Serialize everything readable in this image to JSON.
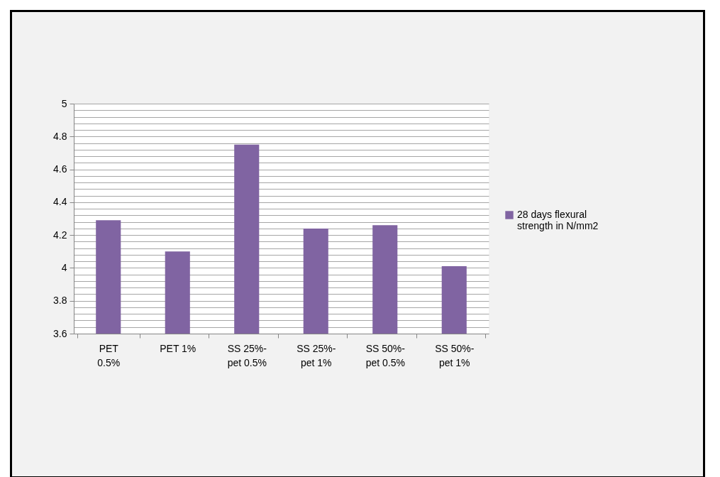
{
  "chart_data": {
    "type": "bar",
    "categories": [
      "PET 0.5%",
      "PET 1%",
      "SS 25%-pet 0.5%",
      "SS 25%-pet 1%",
      "SS 50%-pet 0.5%",
      "SS 50%-pet 1%"
    ],
    "series": [
      {
        "name": "28 days flexural strength in N/mm2",
        "color": "#8064a2",
        "values": [
          4.29,
          4.1,
          4.75,
          4.24,
          4.26,
          4.01
        ]
      }
    ],
    "ylim": [
      3.6,
      5
    ],
    "yticks": [
      3.6,
      {
        "value": 3.64,
        "label": null
      },
      {
        "value": 3.68,
        "label": null
      },
      {
        "value": 3.72,
        "label": null
      },
      {
        "value": 3.76,
        "label": null
      },
      3.8,
      {
        "value": 3.84,
        "label": null
      },
      {
        "value": 3.88,
        "label": null
      },
      {
        "value": 3.92,
        "label": null
      },
      {
        "value": 3.96,
        "label": null
      },
      4,
      {
        "value": 4.04,
        "label": null
      },
      {
        "value": 4.08,
        "label": null
      },
      {
        "value": 4.12,
        "label": null
      },
      {
        "value": 4.16,
        "label": null
      },
      4.2,
      {
        "value": 4.24,
        "label": null
      },
      {
        "value": 4.28,
        "label": null
      },
      {
        "value": 4.32,
        "label": null
      },
      {
        "value": 4.36,
        "label": null
      },
      4.4,
      {
        "value": 4.44,
        "label": null
      },
      {
        "value": 4.48,
        "label": null
      },
      {
        "value": 4.52,
        "label": null
      },
      {
        "value": 4.56,
        "label": null
      },
      4.6,
      {
        "value": 4.64,
        "label": null
      },
      {
        "value": 4.68,
        "label": null
      },
      {
        "value": 4.72,
        "label": null
      },
      {
        "value": 4.76,
        "label": null
      },
      4.8,
      {
        "value": 4.84,
        "label": null
      },
      {
        "value": 4.88,
        "label": null
      },
      {
        "value": 4.92,
        "label": null
      },
      {
        "value": 4.96,
        "label": null
      },
      5
    ],
    "grid": "y",
    "legend": "right"
  }
}
